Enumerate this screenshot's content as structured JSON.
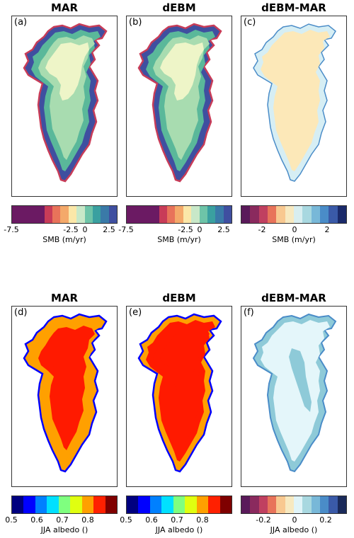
{
  "top_row": {
    "panels": [
      {
        "title": "MAR",
        "label": "(a)"
      },
      {
        "title": "dEBM",
        "label": "(b)"
      },
      {
        "title": "dEBM-MAR",
        "label": "(c)"
      }
    ],
    "colorbars": [
      {
        "label": "SMB (m/yr)",
        "ticks": [
          "-7.5",
          "-2.5",
          "0",
          "2.5"
        ]
      },
      {
        "label": "SMB (m/yr)",
        "ticks": [
          "-7.5",
          "-2.5",
          "0",
          "2.5"
        ]
      },
      {
        "label": "SMB (m/yr)",
        "ticks": [
          "-2",
          "0",
          "2"
        ]
      }
    ]
  },
  "bottom_row": {
    "panels": [
      {
        "title": "MAR",
        "label": "(d)"
      },
      {
        "title": "dEBM",
        "label": "(e)"
      },
      {
        "title": "dEBM-MAR",
        "label": "(f)"
      }
    ],
    "colorbars": [
      {
        "label": "JJA albedo ()",
        "ticks": [
          "0.5",
          "0.6",
          "0.7",
          "0.8"
        ]
      },
      {
        "label": "JJA albedo ()",
        "ticks": [
          "0.5",
          "0.6",
          "0.7",
          "0.8"
        ]
      },
      {
        "label": "JJA albedo ()",
        "ticks": [
          "-0.2",
          "0",
          "0.2"
        ]
      }
    ]
  },
  "colors": {
    "smb": [
      "#6b1a63",
      "#6b1a63",
      "#6b1a63",
      "#6b1a63",
      "#c83c58",
      "#e8735a",
      "#f4a96a",
      "#fbe7a8",
      "#c8e8c8",
      "#6ec4a8",
      "#3aa0a0",
      "#3a7aa8",
      "#3f4fa0"
    ],
    "smb_diff": [
      "#5a1a5a",
      "#8a2a5e",
      "#c04060",
      "#e8735a",
      "#f8c890",
      "#f7e9c0",
      "#d8eef0",
      "#a8d8e0",
      "#78b8d8",
      "#4a8cc8",
      "#3a5aa8",
      "#1a2a6a"
    ],
    "albedo": [
      "#00007f",
      "#0000ff",
      "#0080ff",
      "#00e0ff",
      "#7fff7f",
      "#e0ff10",
      "#ffa000",
      "#ff2000",
      "#7f0000"
    ],
    "albedo_diff": [
      "#5a1a5a",
      "#8a2a5e",
      "#c04060",
      "#e8735a",
      "#f8c890",
      "#f7e9c0",
      "#e0f4f8",
      "#a8d8e0",
      "#78b8d8",
      "#4a8cc8",
      "#3a5aa8",
      "#1a2a5a"
    ],
    "smb_interior": "#eef5c8",
    "smb_mid": "#a8dcb0",
    "smb_coast": "#5ab89a",
    "diff_interior": "#fce8b8",
    "diff_coast": "#d6eef4",
    "albedo_interior": "#ff1a00",
    "diff_albedo_interior": "#e4f6fa",
    "diff_albedo_band": "#8ecad8"
  }
}
